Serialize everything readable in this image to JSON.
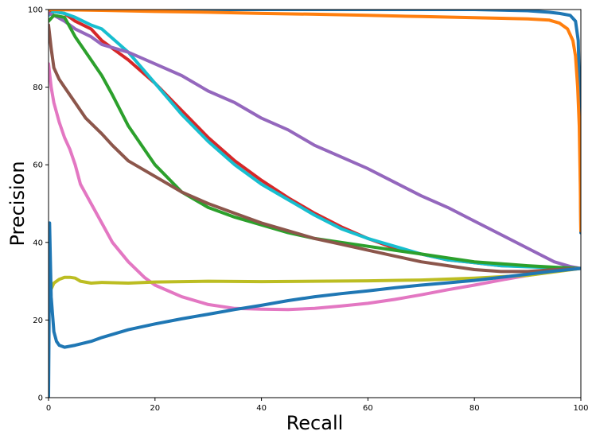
{
  "chart_data": {
    "type": "line",
    "title": "",
    "xlabel": "Recall",
    "ylabel": "Precision",
    "xlim": [
      0,
      100
    ],
    "ylim": [
      0,
      100
    ],
    "xticks": [
      0,
      20,
      40,
      60,
      80,
      100
    ],
    "yticks": [
      0,
      20,
      40,
      60,
      80,
      100
    ],
    "grid": false,
    "legend": "none",
    "series": [
      {
        "color": "#d62728",
        "points": [
          [
            0,
            99
          ],
          [
            1,
            99.5
          ],
          [
            3,
            99
          ],
          [
            5,
            97
          ],
          [
            8,
            95
          ],
          [
            10,
            92
          ],
          [
            15,
            87
          ],
          [
            20,
            81
          ],
          [
            25,
            74
          ],
          [
            30,
            67
          ],
          [
            35,
            61
          ],
          [
            40,
            56
          ],
          [
            45,
            51.5
          ],
          [
            50,
            47.5
          ],
          [
            55,
            44
          ],
          [
            60,
            41
          ],
          [
            65,
            38.5
          ],
          [
            70,
            37
          ],
          [
            75,
            35.5
          ],
          [
            80,
            34.8
          ],
          [
            85,
            34
          ],
          [
            90,
            33.8
          ],
          [
            95,
            33.5
          ],
          [
            100,
            33.3
          ]
        ]
      },
      {
        "color": "#17becf",
        "points": [
          [
            0,
            98.5
          ],
          [
            1,
            99.5
          ],
          [
            3,
            99
          ],
          [
            5,
            98
          ],
          [
            8,
            96
          ],
          [
            10,
            95
          ],
          [
            15,
            89
          ],
          [
            20,
            81
          ],
          [
            25,
            73
          ],
          [
            30,
            66
          ],
          [
            35,
            60
          ],
          [
            40,
            55
          ],
          [
            45,
            51
          ],
          [
            50,
            47
          ],
          [
            55,
            43.5
          ],
          [
            60,
            41
          ],
          [
            65,
            39
          ],
          [
            70,
            37
          ],
          [
            75,
            35.5
          ],
          [
            80,
            34.8
          ],
          [
            85,
            34
          ],
          [
            90,
            33.7
          ],
          [
            95,
            33.5
          ],
          [
            100,
            33.3
          ]
        ]
      },
      {
        "color": "#9467bd",
        "points": [
          [
            0,
            99
          ],
          [
            1,
            98.5
          ],
          [
            3,
            97
          ],
          [
            5,
            95
          ],
          [
            8,
            93
          ],
          [
            10,
            91
          ],
          [
            15,
            89
          ],
          [
            20,
            86
          ],
          [
            25,
            83
          ],
          [
            30,
            79
          ],
          [
            35,
            76
          ],
          [
            40,
            72
          ],
          [
            45,
            69
          ],
          [
            50,
            65
          ],
          [
            55,
            62
          ],
          [
            60,
            59
          ],
          [
            65,
            55.5
          ],
          [
            70,
            52
          ],
          [
            75,
            49
          ],
          [
            80,
            45.5
          ],
          [
            85,
            42
          ],
          [
            90,
            38.5
          ],
          [
            95,
            35
          ],
          [
            98,
            33.8
          ],
          [
            100,
            33.3
          ]
        ]
      },
      {
        "color": "#2ca02c",
        "points": [
          [
            0,
            97
          ],
          [
            1,
            98.5
          ],
          [
            3,
            98
          ],
          [
            5,
            93
          ],
          [
            8,
            87
          ],
          [
            10,
            83
          ],
          [
            12,
            78
          ],
          [
            15,
            70
          ],
          [
            18,
            64
          ],
          [
            20,
            60
          ],
          [
            25,
            53
          ],
          [
            30,
            49
          ],
          [
            35,
            46.5
          ],
          [
            40,
            44.5
          ],
          [
            45,
            42.5
          ],
          [
            50,
            41
          ],
          [
            55,
            40
          ],
          [
            60,
            39
          ],
          [
            65,
            38
          ],
          [
            70,
            37
          ],
          [
            75,
            36
          ],
          [
            80,
            35
          ],
          [
            85,
            34.5
          ],
          [
            90,
            34
          ],
          [
            95,
            33.6
          ],
          [
            100,
            33.3
          ]
        ]
      },
      {
        "color": "#8c564b",
        "points": [
          [
            0,
            96
          ],
          [
            0.5,
            90
          ],
          [
            1,
            85
          ],
          [
            2,
            82
          ],
          [
            3,
            80
          ],
          [
            4,
            78
          ],
          [
            5,
            76
          ],
          [
            7,
            72
          ],
          [
            10,
            68
          ],
          [
            12,
            65
          ],
          [
            15,
            61
          ],
          [
            20,
            57
          ],
          [
            25,
            53
          ],
          [
            30,
            50
          ],
          [
            35,
            47.5
          ],
          [
            40,
            45
          ],
          [
            45,
            43
          ],
          [
            50,
            41
          ],
          [
            55,
            39.5
          ],
          [
            60,
            38
          ],
          [
            65,
            36.5
          ],
          [
            70,
            35
          ],
          [
            75,
            34
          ],
          [
            80,
            33
          ],
          [
            85,
            32.5
          ],
          [
            90,
            32.5
          ],
          [
            95,
            33
          ],
          [
            100,
            33.3
          ]
        ]
      },
      {
        "color": "#e377c2",
        "points": [
          [
            0,
            86
          ],
          [
            0.5,
            80
          ],
          [
            1,
            76
          ],
          [
            2,
            71
          ],
          [
            3,
            67
          ],
          [
            4,
            64
          ],
          [
            5,
            60
          ],
          [
            6,
            55
          ],
          [
            8,
            50
          ],
          [
            10,
            45
          ],
          [
            12,
            40
          ],
          [
            15,
            35
          ],
          [
            18,
            31
          ],
          [
            20,
            29
          ],
          [
            25,
            26
          ],
          [
            30,
            24
          ],
          [
            35,
            23
          ],
          [
            40,
            22.8
          ],
          [
            45,
            22.7
          ],
          [
            50,
            23
          ],
          [
            55,
            23.6
          ],
          [
            60,
            24.3
          ],
          [
            65,
            25.3
          ],
          [
            70,
            26.5
          ],
          [
            75,
            27.8
          ],
          [
            80,
            29
          ],
          [
            85,
            30.3
          ],
          [
            90,
            31.5
          ],
          [
            95,
            32.5
          ],
          [
            100,
            33.3
          ]
        ]
      },
      {
        "color": "#bcbd22",
        "points": [
          [
            0,
            26
          ],
          [
            0.5,
            28
          ],
          [
            1,
            29.5
          ],
          [
            2,
            30.5
          ],
          [
            3,
            31
          ],
          [
            4,
            31
          ],
          [
            5,
            30.8
          ],
          [
            6,
            30
          ],
          [
            8,
            29.5
          ],
          [
            10,
            29.7
          ],
          [
            15,
            29.5
          ],
          [
            20,
            29.8
          ],
          [
            30,
            30
          ],
          [
            40,
            29.9
          ],
          [
            50,
            30
          ],
          [
            60,
            30.1
          ],
          [
            70,
            30.3
          ],
          [
            80,
            30.8
          ],
          [
            90,
            31.5
          ],
          [
            100,
            33.3
          ]
        ]
      },
      {
        "color": "#1f77b4",
        "points": [
          [
            0,
            0
          ],
          [
            0.1,
            20
          ],
          [
            0.2,
            45
          ],
          [
            0.5,
            26
          ],
          [
            1,
            17
          ],
          [
            1.5,
            14.5
          ],
          [
            2,
            13.5
          ],
          [
            3,
            13
          ],
          [
            5,
            13.5
          ],
          [
            8,
            14.5
          ],
          [
            10,
            15.5
          ],
          [
            15,
            17.5
          ],
          [
            20,
            19
          ],
          [
            25,
            20.3
          ],
          [
            30,
            21.5
          ],
          [
            35,
            22.7
          ],
          [
            40,
            23.8
          ],
          [
            45,
            25
          ],
          [
            50,
            26
          ],
          [
            55,
            26.8
          ],
          [
            60,
            27.5
          ],
          [
            65,
            28.3
          ],
          [
            70,
            29
          ],
          [
            75,
            29.6
          ],
          [
            80,
            30.2
          ],
          [
            85,
            31
          ],
          [
            90,
            31.8
          ],
          [
            95,
            32.6
          ],
          [
            100,
            33.3
          ]
        ]
      },
      {
        "color": "#1f77b4",
        "points": [
          [
            0,
            100
          ],
          [
            10,
            100
          ],
          [
            20,
            100
          ],
          [
            30,
            100
          ],
          [
            40,
            100
          ],
          [
            50,
            100
          ],
          [
            60,
            100
          ],
          [
            70,
            100
          ],
          [
            80,
            100
          ],
          [
            90,
            99.7
          ],
          [
            94,
            99.3
          ],
          [
            96,
            99
          ],
          [
            98,
            98.5
          ],
          [
            99,
            97
          ],
          [
            99.5,
            92
          ],
          [
            99.8,
            75
          ],
          [
            100,
            42.5
          ]
        ]
      },
      {
        "color": "#ff7f0e",
        "points": [
          [
            0,
            100
          ],
          [
            5,
            99.9
          ],
          [
            10,
            99.8
          ],
          [
            20,
            99.5
          ],
          [
            30,
            99.3
          ],
          [
            40,
            99
          ],
          [
            50,
            98.8
          ],
          [
            60,
            98.5
          ],
          [
            70,
            98.2
          ],
          [
            80,
            97.9
          ],
          [
            90,
            97.6
          ],
          [
            94,
            97.3
          ],
          [
            96,
            96.5
          ],
          [
            97.5,
            95
          ],
          [
            98.5,
            92
          ],
          [
            99,
            88
          ],
          [
            99.4,
            80
          ],
          [
            99.7,
            70
          ],
          [
            99.9,
            55
          ],
          [
            100,
            43
          ]
        ]
      }
    ]
  }
}
